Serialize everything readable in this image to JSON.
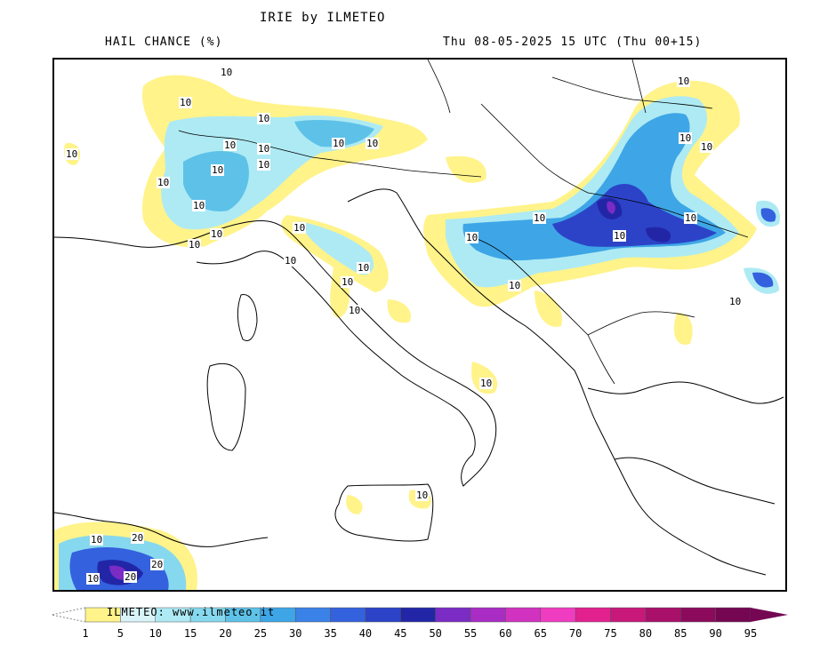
{
  "header": {
    "title": "IRIE by ILMETEO",
    "subtitle": "HAIL CHANCE (%)",
    "datetime": "Thu 08-05-2025 15 UTC (Thu 00+15)"
  },
  "map": {
    "contour_labels": [
      "10",
      "10",
      "10",
      "10",
      "10",
      "10",
      "10",
      "10",
      "10",
      "10",
      "10",
      "10",
      "10",
      "10",
      "10",
      "10",
      "10",
      "10",
      "10",
      "10",
      "10",
      "10",
      "10",
      "10",
      "10",
      "10",
      "10",
      "10",
      "10",
      "10",
      "10",
      "20",
      "20",
      "20",
      "10"
    ]
  },
  "legend": {
    "watermark": "ILMETEO: www.ilmeteo.it",
    "ticks": [
      "1",
      "5",
      "10",
      "15",
      "20",
      "25",
      "30",
      "35",
      "40",
      "45",
      "50",
      "55",
      "60",
      "65",
      "70",
      "75",
      "80",
      "85",
      "90",
      "95"
    ],
    "colors": [
      "#fff38a",
      "#d8f4f8",
      "#aeeaf4",
      "#86d8ee",
      "#5ec2e8",
      "#3ea6e6",
      "#3a82e8",
      "#3461de",
      "#2c43c8",
      "#2226a6",
      "#7a2cc4",
      "#a92cc4",
      "#d232c0",
      "#f03cc0",
      "#e2208e",
      "#c8187a",
      "#a8106a",
      "#8c0a5c",
      "#740652"
    ]
  }
}
